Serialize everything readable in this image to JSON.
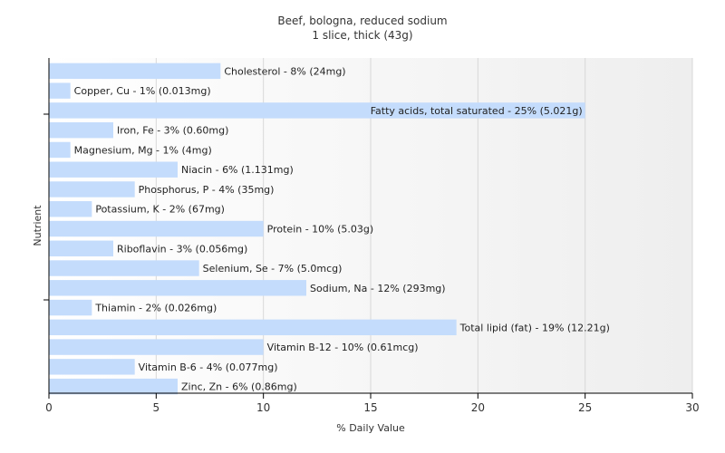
{
  "chart_data": {
    "type": "bar",
    "orientation": "horizontal",
    "title": "Beef, bologna, reduced sodium",
    "subtitle": "1 slice, thick (43g)",
    "xlabel": "% Daily Value",
    "ylabel": "Nutrient",
    "xlim": [
      0,
      30
    ],
    "xticks": [
      0,
      5,
      10,
      15,
      20,
      25,
      30
    ],
    "grid": true,
    "bar_color": "#c4dcfc",
    "categories": [
      "Cholesterol",
      "Copper, Cu",
      "Fatty acids, total saturated",
      "Iron, Fe",
      "Magnesium, Mg",
      "Niacin",
      "Phosphorus, P",
      "Potassium, K",
      "Protein",
      "Riboflavin",
      "Selenium, Se",
      "Sodium, Na",
      "Thiamin",
      "Total lipid (fat)",
      "Vitamin B-12",
      "Vitamin B-6",
      "Zinc, Zn"
    ],
    "values": [
      8,
      1,
      25,
      3,
      1,
      6,
      4,
      2,
      10,
      3,
      7,
      12,
      2,
      19,
      10,
      4,
      6
    ],
    "labels": [
      "Cholesterol - 8% (24mg)",
      "Copper, Cu - 1% (0.013mg)",
      "Fatty acids, total saturated - 25% (5.021g)",
      "Iron, Fe - 3% (0.60mg)",
      "Magnesium, Mg - 1% (4mg)",
      "Niacin - 6% (1.131mg)",
      "Phosphorus, P - 4% (35mg)",
      "Potassium, K - 2% (67mg)",
      "Protein - 10% (5.03g)",
      "Riboflavin - 3% (0.056mg)",
      "Selenium, Se - 7% (5.0mcg)",
      "Sodium, Na - 12% (293mg)",
      "Thiamin - 2% (0.026mg)",
      "Total lipid (fat) - 19% (12.21g)",
      "Vitamin B-12 - 10% (0.61mcg)",
      "Vitamin B-6 - 4% (0.077mg)",
      "Zinc, Zn - 6% (0.86mg)"
    ]
  }
}
